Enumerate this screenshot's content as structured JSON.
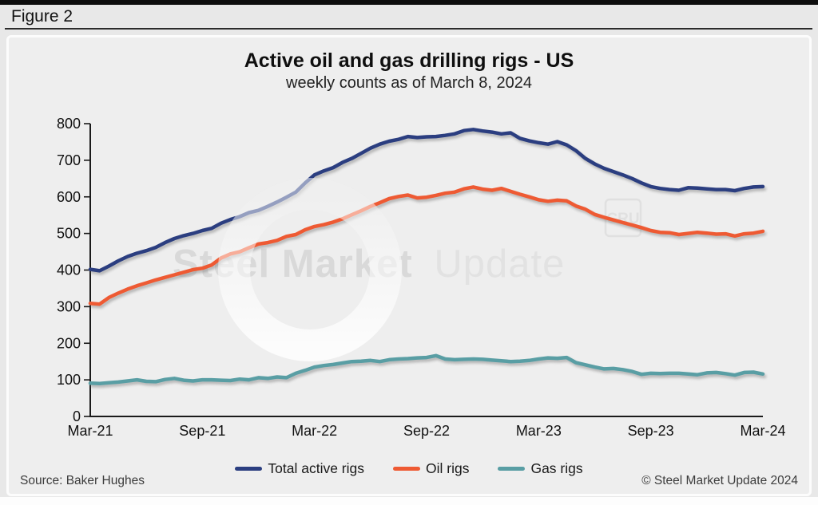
{
  "figure_label": "Figure 2",
  "watermark": {
    "bold": "Steel Market",
    "light": "Update",
    "badge": "CRU"
  },
  "footer": {
    "source": "Source: Baker Hughes",
    "copyright": "© Steel Market Update 2024"
  },
  "chart_data": {
    "type": "line",
    "title": "Active oil and gas drilling rigs - US",
    "subtitle": "weekly counts as of March 8, 2024",
    "xlabel": "",
    "ylabel": "",
    "ylim": [
      0,
      800
    ],
    "y_ticks": [
      0,
      100,
      200,
      300,
      400,
      500,
      600,
      700,
      800
    ],
    "x_tick_labels": [
      "Mar-21",
      "Sep-21",
      "Mar-22",
      "Sep-22",
      "Mar-23",
      "Sep-23",
      "Mar-24"
    ],
    "x_range_months": [
      0,
      36
    ],
    "sample_interval_months": 0.5,
    "grid": false,
    "legend_position": "bottom",
    "series": [
      {
        "name": "Total active rigs",
        "color": "#2b3e80",
        "values": [
          402,
          398,
          411,
          425,
          437,
          446,
          453,
          462,
          475,
          486,
          494,
          500,
          508,
          514,
          528,
          538,
          546,
          557,
          563,
          574,
          586,
          599,
          613,
          638,
          660,
          671,
          680,
          694,
          705,
          719,
          733,
          744,
          752,
          757,
          765,
          762,
          764,
          765,
          768,
          772,
          781,
          784,
          780,
          777,
          772,
          775,
          760,
          753,
          748,
          744,
          751,
          742,
          726,
          705,
          690,
          678,
          669,
          660,
          650,
          638,
          628,
          623,
          620,
          618,
          625,
          624,
          622,
          620,
          620,
          617,
          623,
          627,
          628
        ]
      },
      {
        "name": "Oil rigs",
        "color": "#ee5a33",
        "values": [
          309,
          307,
          325,
          337,
          348,
          357,
          365,
          373,
          380,
          387,
          394,
          401,
          405,
          414,
          433,
          444,
          450,
          461,
          471,
          475,
          481,
          492,
          497,
          510,
          519,
          524,
          531,
          540,
          551,
          562,
          574,
          584,
          595,
          601,
          605,
          597,
          599,
          604,
          610,
          613,
          622,
          627,
          621,
          618,
          623,
          615,
          607,
          600,
          592,
          588,
          591,
          589,
          575,
          566,
          552,
          544,
          537,
          530,
          523,
          516,
          508,
          503,
          502,
          497,
          500,
          503,
          501,
          498,
          499,
          493,
          499,
          501,
          506
        ]
      },
      {
        "name": "Gas rigs",
        "color": "#599ea4",
        "values": [
          91,
          90,
          92,
          94,
          97,
          100,
          96,
          95,
          101,
          104,
          99,
          97,
          100,
          100,
          99,
          98,
          102,
          100,
          106,
          104,
          108,
          106,
          118,
          126,
          135,
          139,
          142,
          146,
          150,
          151,
          153,
          150,
          155,
          157,
          158,
          160,
          161,
          166,
          157,
          155,
          156,
          157,
          156,
          154,
          152,
          150,
          151,
          153,
          157,
          160,
          159,
          161,
          147,
          141,
          135,
          130,
          131,
          128,
          123,
          115,
          118,
          117,
          118,
          118,
          116,
          114,
          119,
          120,
          117,
          113,
          120,
          121,
          116
        ]
      }
    ]
  }
}
